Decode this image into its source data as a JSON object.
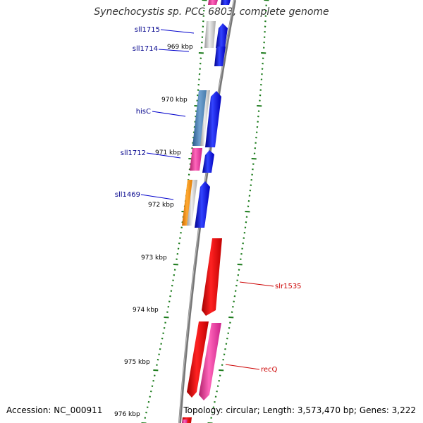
{
  "title": "Synechocystis sp. PCC 6803, complete genome",
  "footer": {
    "accession": "Accession: NC_000911",
    "summary": "Topology: circular; Length: 3,573,470 bp; Genes: 3,222"
  },
  "colors": {
    "forward_genes": "#dd0000",
    "forward_pink": "#ee3399",
    "reverse_genes": "#0000dd",
    "reverse_label": "#00008b",
    "forward_label": "#cc0000",
    "backbone": "#888888",
    "ticks": "#1a7a1a"
  },
  "ticks": [
    {
      "label": "969 kbp"
    },
    {
      "label": "970 kbp"
    },
    {
      "label": "971 kbp"
    },
    {
      "label": "972 kbp"
    },
    {
      "label": "973 kbp"
    },
    {
      "label": "974 kbp"
    },
    {
      "label": "975 kbp"
    },
    {
      "label": "976 kbp"
    }
  ],
  "gene_labels_left": [
    {
      "name": "sll1715"
    },
    {
      "name": "sll1714"
    },
    {
      "name": "hisC"
    },
    {
      "name": "sll1712"
    },
    {
      "name": "sll1469"
    }
  ],
  "gene_labels_right": [
    {
      "name": "slr1535"
    },
    {
      "name": "recQ"
    }
  ]
}
